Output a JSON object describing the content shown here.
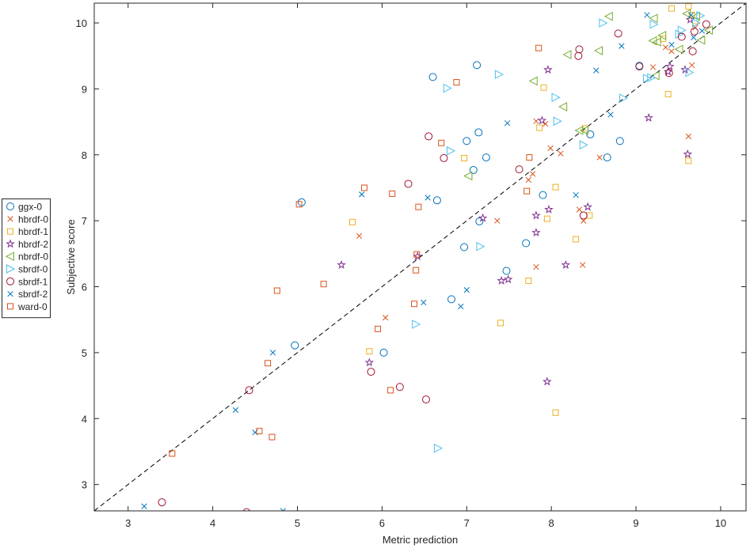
{
  "chart_data": {
    "type": "scatter",
    "title": "",
    "xlabel": "Metric prediction",
    "ylabel": "Subjective score",
    "xlim": [
      2.6,
      10.3
    ],
    "ylim": [
      2.6,
      10.3
    ],
    "x_ticks": [
      3,
      4,
      5,
      6,
      7,
      8,
      9,
      10
    ],
    "y_ticks": [
      3,
      4,
      5,
      6,
      7,
      8,
      9,
      10
    ],
    "x_tick_labels": [
      "3",
      "4",
      "5",
      "6",
      "7",
      "8",
      "9",
      "10"
    ],
    "y_tick_labels": [
      "3",
      "4",
      "5",
      "6",
      "7",
      "8",
      "9",
      "10"
    ],
    "grid": false,
    "legend_position": "outside-left",
    "reference_line": {
      "style": "dashed",
      "color": "#000000",
      "from": [
        2.6,
        2.6
      ],
      "to": [
        10.3,
        10.3
      ]
    },
    "series": [
      {
        "name": "ggx-0",
        "marker": "circle",
        "color": "#0072bd",
        "points": [
          [
            5.05,
            7.28
          ],
          [
            4.97,
            5.11
          ],
          [
            6.02,
            5.0
          ],
          [
            6.6,
            9.18
          ],
          [
            6.65,
            7.31
          ],
          [
            6.82,
            5.81
          ],
          [
            6.97,
            6.6
          ],
          [
            7.0,
            8.21
          ],
          [
            7.08,
            7.77
          ],
          [
            7.12,
            9.36
          ],
          [
            7.14,
            8.34
          ],
          [
            7.15,
            6.99
          ],
          [
            7.23,
            7.96
          ],
          [
            7.47,
            6.24
          ],
          [
            7.7,
            6.66
          ],
          [
            7.9,
            7.39
          ],
          [
            8.46,
            8.31
          ],
          [
            8.66,
            7.96
          ],
          [
            8.81,
            8.21
          ],
          [
            9.04,
            9.35
          ]
        ]
      },
      {
        "name": "hbrdf-0",
        "marker": "x",
        "color": "#d95319",
        "points": [
          [
            5.73,
            6.77
          ],
          [
            6.04,
            5.53
          ],
          [
            7.36,
            7.0
          ],
          [
            7.73,
            7.62
          ],
          [
            7.78,
            7.71
          ],
          [
            7.82,
            8.51
          ],
          [
            7.82,
            6.3
          ],
          [
            7.93,
            8.47
          ],
          [
            7.99,
            8.1
          ],
          [
            8.11,
            8.02
          ],
          [
            8.33,
            7.17
          ],
          [
            8.37,
            6.33
          ],
          [
            8.38,
            7.0
          ],
          [
            8.57,
            7.96
          ],
          [
            9.2,
            9.33
          ],
          [
            9.35,
            9.63
          ],
          [
            9.42,
            9.57
          ],
          [
            9.62,
            8.28
          ],
          [
            9.66,
            9.36
          ],
          [
            9.7,
            9.93
          ]
        ]
      },
      {
        "name": "hbrdf-1",
        "marker": "square",
        "color": "#edb120",
        "points": [
          [
            5.65,
            6.98
          ],
          [
            5.85,
            5.02
          ],
          [
            6.97,
            7.95
          ],
          [
            7.4,
            5.45
          ],
          [
            7.73,
            6.09
          ],
          [
            7.86,
            8.41
          ],
          [
            7.91,
            9.02
          ],
          [
            7.95,
            7.03
          ],
          [
            8.05,
            7.51
          ],
          [
            8.05,
            4.09
          ],
          [
            8.29,
            6.72
          ],
          [
            8.4,
            8.4
          ],
          [
            8.45,
            7.08
          ],
          [
            9.32,
            9.76
          ],
          [
            9.38,
            8.92
          ],
          [
            9.42,
            10.22
          ],
          [
            9.62,
            10.25
          ],
          [
            9.62,
            7.91
          ],
          [
            9.66,
            10.12
          ],
          [
            9.7,
            10.03
          ]
        ]
      },
      {
        "name": "hbrdf-2",
        "marker": "star",
        "color": "#7e2f8e",
        "points": [
          [
            5.52,
            6.33
          ],
          [
            5.85,
            4.85
          ],
          [
            6.42,
            6.46
          ],
          [
            7.19,
            7.04
          ],
          [
            7.41,
            6.09
          ],
          [
            7.49,
            6.11
          ],
          [
            7.82,
            7.08
          ],
          [
            7.82,
            6.82
          ],
          [
            7.89,
            8.52
          ],
          [
            7.95,
            4.56
          ],
          [
            7.96,
            9.29
          ],
          [
            7.97,
            7.17
          ],
          [
            8.17,
            6.33
          ],
          [
            8.43,
            7.21
          ],
          [
            9.15,
            8.56
          ],
          [
            9.38,
            9.26
          ],
          [
            9.4,
            9.34
          ],
          [
            9.58,
            9.29
          ],
          [
            9.61,
            8.01
          ],
          [
            9.64,
            10.05
          ]
        ]
      },
      {
        "name": "nbrdf-0",
        "marker": "triangle-left",
        "color": "#77ac30",
        "points": [
          [
            7.02,
            7.68
          ],
          [
            7.79,
            9.12
          ],
          [
            8.14,
            8.73
          ],
          [
            8.19,
            9.52
          ],
          [
            8.33,
            8.37
          ],
          [
            8.39,
            8.37
          ],
          [
            8.56,
            9.58
          ],
          [
            8.68,
            10.1
          ],
          [
            9.2,
            9.73
          ],
          [
            9.23,
            9.2
          ],
          [
            9.21,
            10.07
          ],
          [
            9.25,
            9.71
          ],
          [
            9.31,
            9.81
          ],
          [
            9.51,
            9.6
          ],
          [
            9.6,
            10.14
          ],
          [
            9.71,
            10.1
          ],
          [
            9.77,
            9.74
          ],
          [
            9.86,
            9.89
          ]
        ]
      },
      {
        "name": "sbrdf-0",
        "marker": "triangle-right",
        "color": "#4dbeee",
        "points": [
          [
            6.4,
            5.43
          ],
          [
            6.66,
            3.55
          ],
          [
            6.77,
            9.01
          ],
          [
            6.81,
            8.06
          ],
          [
            7.16,
            6.61
          ],
          [
            7.38,
            9.22
          ],
          [
            8.05,
            8.87
          ],
          [
            8.07,
            8.51
          ],
          [
            8.38,
            8.15
          ],
          [
            8.61,
            10.0
          ],
          [
            8.85,
            8.86
          ],
          [
            9.13,
            9.16
          ],
          [
            9.18,
            9.17
          ],
          [
            9.21,
            9.98
          ],
          [
            9.51,
            9.83
          ],
          [
            9.54,
            9.89
          ],
          [
            9.63,
            9.25
          ],
          [
            9.71,
            10.0
          ],
          [
            9.76,
            10.11
          ]
        ]
      },
      {
        "name": "sbrdf-1",
        "marker": "circle",
        "color": "#a2142f",
        "points": [
          [
            3.4,
            2.73
          ],
          [
            4.4,
            2.58
          ],
          [
            4.43,
            4.43
          ],
          [
            5.87,
            4.71
          ],
          [
            6.21,
            4.48
          ],
          [
            6.31,
            7.56
          ],
          [
            6.52,
            4.29
          ],
          [
            6.55,
            8.28
          ],
          [
            6.73,
            7.95
          ],
          [
            7.62,
            7.78
          ],
          [
            8.32,
            9.5
          ],
          [
            8.33,
            9.6
          ],
          [
            8.38,
            7.08
          ],
          [
            8.79,
            9.84
          ],
          [
            9.04,
            9.34
          ],
          [
            9.39,
            9.24
          ],
          [
            9.54,
            9.79
          ],
          [
            9.67,
            9.57
          ],
          [
            9.69,
            9.87
          ],
          [
            9.83,
            9.98
          ]
        ]
      },
      {
        "name": "sbrdf-2",
        "marker": "x",
        "color": "#0072bd",
        "points": [
          [
            3.19,
            2.67
          ],
          [
            4.27,
            4.13
          ],
          [
            4.5,
            3.79
          ],
          [
            4.71,
            5.0
          ],
          [
            4.83,
            2.6
          ],
          [
            5.76,
            7.4
          ],
          [
            6.49,
            5.76
          ],
          [
            6.54,
            7.35
          ],
          [
            6.93,
            5.7
          ],
          [
            7.0,
            5.95
          ],
          [
            7.48,
            8.48
          ],
          [
            8.29,
            7.39
          ],
          [
            8.53,
            9.28
          ],
          [
            8.7,
            8.61
          ],
          [
            8.83,
            9.65
          ],
          [
            9.13,
            10.12
          ],
          [
            9.42,
            9.67
          ],
          [
            9.65,
            10.12
          ],
          [
            9.68,
            9.78
          ],
          [
            9.78,
            9.88
          ]
        ]
      },
      {
        "name": "ward-0",
        "marker": "square",
        "color": "#d95319",
        "points": [
          [
            3.52,
            3.47
          ],
          [
            4.55,
            3.81
          ],
          [
            4.65,
            4.84
          ],
          [
            4.7,
            3.72
          ],
          [
            4.76,
            5.94
          ],
          [
            5.02,
            7.25
          ],
          [
            5.31,
            6.04
          ],
          [
            5.79,
            7.5
          ],
          [
            5.95,
            5.36
          ],
          [
            6.1,
            4.43
          ],
          [
            6.12,
            7.41
          ],
          [
            6.38,
            5.74
          ],
          [
            6.4,
            6.25
          ],
          [
            6.41,
            6.49
          ],
          [
            6.43,
            7.21
          ],
          [
            6.7,
            8.18
          ],
          [
            6.88,
            9.1
          ],
          [
            7.71,
            7.45
          ],
          [
            7.74,
            7.96
          ],
          [
            7.85,
            9.62
          ]
        ]
      }
    ]
  }
}
